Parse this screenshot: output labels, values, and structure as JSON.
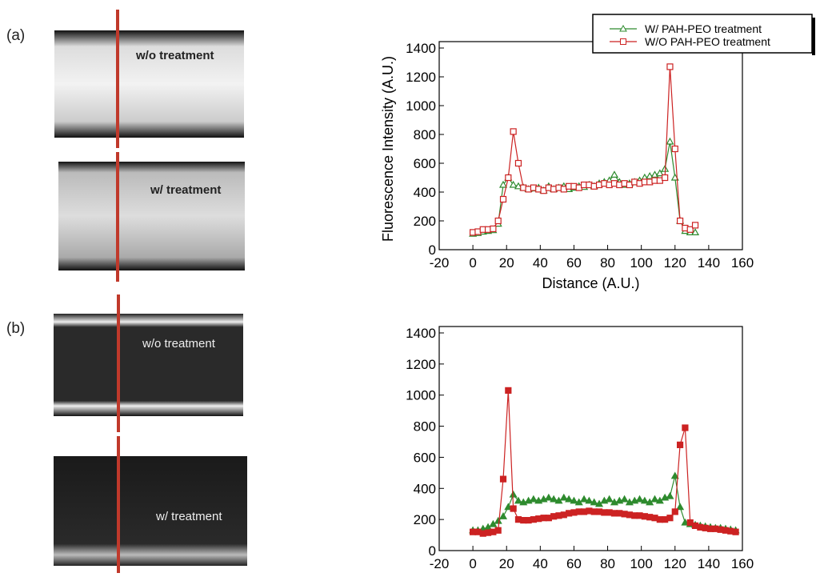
{
  "panels": [
    "(a)",
    "(b)"
  ],
  "images": [
    {
      "label": "w/o treatment"
    },
    {
      "label": "w/ treatment"
    },
    {
      "label": "w/o treatment"
    },
    {
      "label": "w/ treatment"
    }
  ],
  "chart_data": [
    {
      "type": "line",
      "x_label": "Distance (A.U.)",
      "y_label": "Fluorescence Intensity (A.U.)",
      "xlim": [
        -20,
        160
      ],
      "ylim": [
        0,
        1400
      ],
      "xticks": [
        -20,
        0,
        20,
        40,
        60,
        80,
        100,
        120,
        140,
        160
      ],
      "yticks": [
        0,
        200,
        400,
        600,
        800,
        1000,
        1200,
        1400
      ],
      "filled_markers": false,
      "legend": "top-right",
      "x": [
        0,
        3,
        6,
        9,
        12,
        15,
        18,
        21,
        24,
        27,
        30,
        33,
        36,
        39,
        42,
        45,
        48,
        51,
        54,
        57,
        60,
        63,
        66,
        69,
        72,
        75,
        78,
        81,
        84,
        87,
        90,
        93,
        96,
        99,
        102,
        105,
        108,
        111,
        114,
        117,
        120,
        123,
        126,
        129,
        132
      ],
      "series": [
        {
          "name": "W/ PAH-PEO treatment",
          "color": "#2e8b2e",
          "marker": "triangle",
          "values": [
            110,
            115,
            125,
            130,
            135,
            180,
            450,
            500,
            450,
            440,
            430,
            420,
            425,
            430,
            410,
            440,
            420,
            430,
            440,
            420,
            430,
            440,
            435,
            450,
            440,
            460,
            470,
            480,
            520,
            470,
            450,
            460,
            470,
            480,
            500,
            510,
            520,
            530,
            560,
            750,
            500,
            200,
            130,
            120,
            120
          ]
        },
        {
          "name": "W/O PAH-PEO treatment",
          "color": "#cc2222",
          "marker": "square",
          "values": [
            120,
            125,
            140,
            140,
            145,
            200,
            350,
            500,
            820,
            600,
            430,
            420,
            430,
            420,
            410,
            430,
            420,
            430,
            420,
            440,
            440,
            430,
            450,
            450,
            440,
            450,
            460,
            450,
            460,
            450,
            460,
            450,
            470,
            460,
            470,
            470,
            480,
            480,
            500,
            1270,
            700,
            200,
            150,
            140,
            170
          ]
        }
      ]
    },
    {
      "type": "line",
      "xlim": [
        -20,
        160
      ],
      "ylim": [
        0,
        1400
      ],
      "xticks": [
        -20,
        0,
        20,
        40,
        60,
        80,
        100,
        120,
        140,
        160
      ],
      "yticks": [
        0,
        200,
        400,
        600,
        800,
        1000,
        1200,
        1400
      ],
      "filled_markers": true,
      "x": [
        0,
        3,
        6,
        9,
        12,
        15,
        18,
        21,
        24,
        27,
        30,
        33,
        36,
        39,
        42,
        45,
        48,
        51,
        54,
        57,
        60,
        63,
        66,
        69,
        72,
        75,
        78,
        81,
        84,
        87,
        90,
        93,
        96,
        99,
        102,
        105,
        108,
        111,
        114,
        117,
        120,
        123,
        126,
        129,
        132,
        135,
        138,
        141,
        144,
        147,
        150,
        153,
        156
      ],
      "series": [
        {
          "name": "W/ PAH-PEO treatment",
          "color": "#2e8b2e",
          "marker": "triangle",
          "values": [
            130,
            130,
            140,
            150,
            170,
            190,
            220,
            280,
            360,
            320,
            310,
            320,
            330,
            320,
            330,
            340,
            330,
            320,
            340,
            330,
            320,
            310,
            330,
            320,
            310,
            300,
            320,
            330,
            310,
            320,
            330,
            310,
            320,
            330,
            320,
            310,
            330,
            320,
            340,
            350,
            480,
            280,
            180,
            170,
            165,
            160,
            155,
            150,
            145,
            145,
            140,
            135,
            130
          ]
        },
        {
          "name": "W/O PAH-PEO treatment",
          "color": "#cc2222",
          "marker": "square",
          "values": [
            120,
            120,
            110,
            115,
            120,
            130,
            460,
            1030,
            270,
            200,
            195,
            195,
            200,
            205,
            210,
            210,
            220,
            225,
            230,
            240,
            245,
            250,
            250,
            255,
            250,
            250,
            245,
            245,
            240,
            240,
            235,
            230,
            225,
            225,
            220,
            215,
            210,
            200,
            200,
            210,
            250,
            680,
            790,
            180,
            160,
            150,
            145,
            140,
            140,
            135,
            130,
            125,
            120
          ]
        }
      ]
    }
  ]
}
